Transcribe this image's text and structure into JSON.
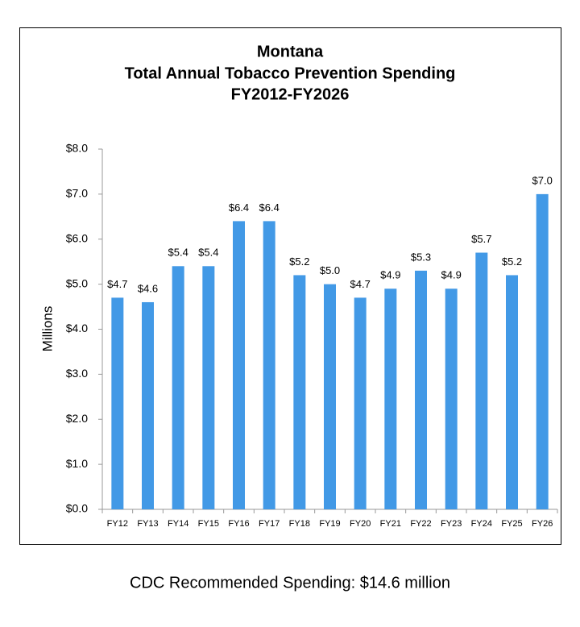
{
  "chart_data": {
    "type": "bar",
    "title": [
      "Montana",
      "Total Annual Tobacco Prevention Spending",
      "FY2012-FY2026"
    ],
    "y_label": "Millions",
    "categories": [
      "FY12",
      "FY13",
      "FY14",
      "FY15",
      "FY16",
      "FY17",
      "FY18",
      "FY19",
      "FY20",
      "FY21",
      "FY22",
      "FY23",
      "FY24",
      "FY25",
      "FY26"
    ],
    "values": [
      4.7,
      4.6,
      5.4,
      5.4,
      6.4,
      6.4,
      5.2,
      5.0,
      4.7,
      4.9,
      5.3,
      4.9,
      5.7,
      5.2,
      7.0
    ],
    "value_labels": [
      "$4.7",
      "$4.6",
      "$5.4",
      "$5.4",
      "$6.4",
      "$6.4",
      "$5.2",
      "$5.0",
      "$4.7",
      "$4.9",
      "$5.3",
      "$4.9",
      "$5.7",
      "$5.2",
      "$7.0"
    ],
    "color": "#4299e6",
    "ylim": [
      0,
      8
    ],
    "yticks": [
      {
        "value": 0,
        "label": "$0.0"
      },
      {
        "value": 1,
        "label": "$1.0"
      },
      {
        "value": 2,
        "label": "$2.0"
      },
      {
        "value": 3,
        "label": "$3.0"
      },
      {
        "value": 4,
        "label": "$4.0"
      },
      {
        "value": 5,
        "label": "$5.0"
      },
      {
        "value": 6,
        "label": "$6.0"
      },
      {
        "value": 7,
        "label": "$7.0"
      },
      {
        "value": 8,
        "label": "$8.0"
      }
    ],
    "grid": false,
    "note": "CDC Recommended Spending: $14.6 million"
  }
}
